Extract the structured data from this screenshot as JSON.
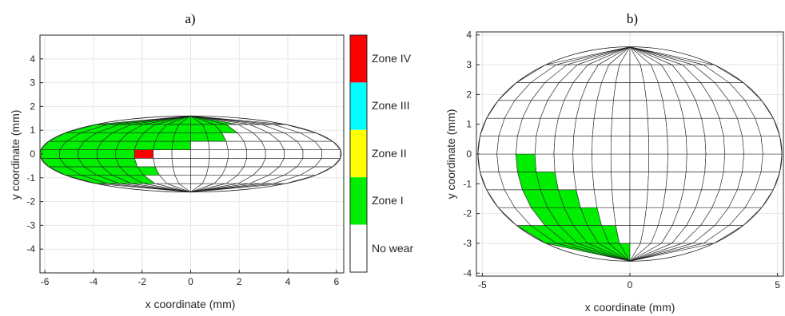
{
  "colors": {
    "no_wear": "#ffffff",
    "zone1": "#00ee00",
    "zone2": "#ffff00",
    "zone3": "#00ffff",
    "zone4": "#ff0000",
    "grid": "#e6e6e6",
    "mesh": "#222222"
  },
  "colorbar": {
    "labels": [
      "Zone IV",
      "Zone III",
      "Zone II",
      "Zone I",
      "No wear"
    ]
  },
  "chart_data": [
    {
      "type": "heatmap",
      "title": "a)",
      "xlabel": "x coordinate (mm)",
      "ylabel": "y coordinate (mm)",
      "xlim": [
        -6.2,
        6.3
      ],
      "ylim": [
        -5,
        5
      ],
      "xticks": [
        -6,
        -4,
        -2,
        0,
        2,
        4,
        6
      ],
      "yticks": [
        -4,
        -3,
        -2,
        -1,
        0,
        1,
        2,
        3,
        4
      ],
      "grid": true,
      "ellipse": {
        "a": 6.2,
        "b": 1.6,
        "rows": 9,
        "cols": 16
      },
      "zones_by_row": [
        [
          0,
          0,
          0,
          0,
          0,
          0,
          0,
          0,
          0,
          0,
          0,
          0,
          0,
          0,
          0,
          0
        ],
        [
          1,
          1,
          1,
          1,
          1,
          0,
          0,
          0,
          0,
          0,
          0,
          0,
          0,
          0,
          0,
          0
        ],
        [
          1,
          1,
          1,
          1,
          1,
          1,
          0,
          0,
          0,
          0,
          0,
          0,
          0,
          0,
          0,
          0
        ],
        [
          1,
          1,
          1,
          1,
          1,
          0,
          0,
          0,
          0,
          0,
          0,
          0,
          0,
          0,
          0,
          0
        ],
        [
          1,
          1,
          1,
          1,
          1,
          4,
          0,
          0,
          0,
          0,
          0,
          0,
          0,
          0,
          0,
          0
        ],
        [
          1,
          1,
          1,
          1,
          1,
          1,
          1,
          1,
          0,
          0,
          0,
          0,
          0,
          0,
          0,
          0
        ],
        [
          1,
          1,
          1,
          1,
          1,
          1,
          1,
          1,
          1,
          1,
          0,
          0,
          0,
          0,
          0,
          0
        ],
        [
          1,
          1,
          1,
          1,
          1,
          1,
          1,
          1,
          1,
          1,
          1,
          0,
          0,
          0,
          0,
          0
        ],
        [
          1,
          1,
          1,
          1,
          1,
          1,
          1,
          1,
          1,
          1,
          1,
          1,
          0,
          0,
          0,
          0
        ]
      ]
    },
    {
      "type": "heatmap",
      "title": "b)",
      "xlabel": "x coordinate (mm)",
      "ylabel": "y coordinate (mm)",
      "xlim": [
        -5.2,
        5.2
      ],
      "ylim": [
        -4.1,
        4.1
      ],
      "xticks": [
        -5,
        0,
        5
      ],
      "yticks": [
        -4,
        -3,
        -2,
        -1,
        0,
        1,
        2,
        3,
        4
      ],
      "grid": true,
      "ellipse": {
        "a": 5.15,
        "b": 3.6,
        "rows": 12,
        "cols": 16
      },
      "zones_by_row": [
        [
          1,
          1,
          1,
          1,
          1,
          1,
          1,
          1,
          0,
          0,
          0,
          0,
          0,
          0,
          0,
          0
        ],
        [
          1,
          1,
          1,
          1,
          1,
          1,
          1,
          0,
          0,
          0,
          0,
          0,
          0,
          0,
          0,
          0
        ],
        [
          0,
          0,
          1,
          1,
          1,
          1,
          0,
          0,
          0,
          0,
          0,
          0,
          0,
          0,
          0,
          0
        ],
        [
          0,
          0,
          1,
          1,
          1,
          0,
          0,
          0,
          0,
          0,
          0,
          0,
          0,
          0,
          0,
          0
        ],
        [
          0,
          0,
          1,
          1,
          0,
          0,
          0,
          0,
          0,
          0,
          0,
          0,
          0,
          0,
          0,
          0
        ],
        [
          0,
          0,
          1,
          0,
          0,
          0,
          0,
          0,
          0,
          0,
          0,
          0,
          0,
          0,
          0,
          0
        ],
        [
          0,
          0,
          0,
          0,
          0,
          0,
          0,
          0,
          0,
          0,
          0,
          0,
          0,
          0,
          0,
          0
        ],
        [
          0,
          0,
          0,
          0,
          0,
          0,
          0,
          0,
          0,
          0,
          0,
          0,
          0,
          0,
          0,
          0
        ],
        [
          0,
          0,
          0,
          0,
          0,
          0,
          0,
          0,
          0,
          0,
          0,
          0,
          0,
          0,
          0,
          0
        ],
        [
          0,
          0,
          0,
          0,
          0,
          0,
          0,
          0,
          0,
          0,
          0,
          0,
          0,
          0,
          0,
          0
        ],
        [
          0,
          0,
          0,
          0,
          0,
          0,
          0,
          0,
          0,
          0,
          0,
          0,
          0,
          0,
          0,
          0
        ],
        [
          0,
          0,
          0,
          0,
          0,
          0,
          0,
          0,
          0,
          0,
          0,
          0,
          0,
          0,
          0,
          0
        ]
      ]
    }
  ]
}
